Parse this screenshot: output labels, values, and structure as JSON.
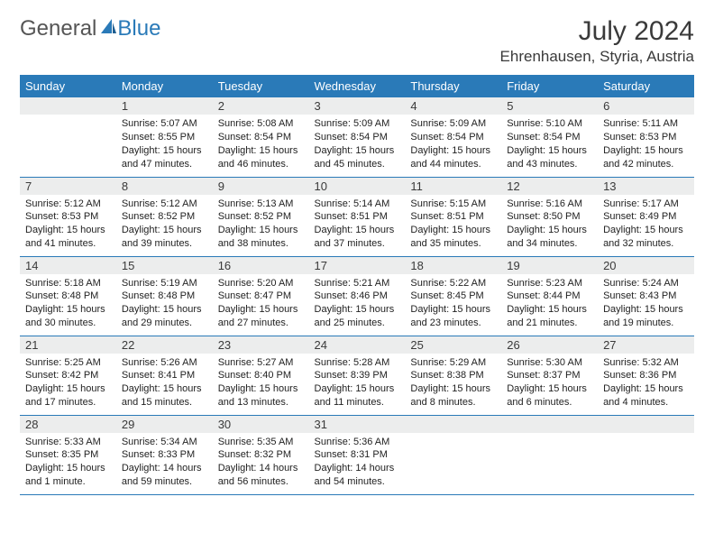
{
  "logo": {
    "text1": "General",
    "text2": "Blue"
  },
  "title": "July 2024",
  "location": "Ehrenhausen, Styria, Austria",
  "colors": {
    "header_bg": "#2a7ab8",
    "header_fg": "#ffffff",
    "daynum_bg": "#eceded"
  },
  "weekdays": [
    "Sunday",
    "Monday",
    "Tuesday",
    "Wednesday",
    "Thursday",
    "Friday",
    "Saturday"
  ],
  "weeks": [
    [
      null,
      {
        "n": "1",
        "sr": "5:07 AM",
        "ss": "8:55 PM",
        "dl": "15 hours and 47 minutes."
      },
      {
        "n": "2",
        "sr": "5:08 AM",
        "ss": "8:54 PM",
        "dl": "15 hours and 46 minutes."
      },
      {
        "n": "3",
        "sr": "5:09 AM",
        "ss": "8:54 PM",
        "dl": "15 hours and 45 minutes."
      },
      {
        "n": "4",
        "sr": "5:09 AM",
        "ss": "8:54 PM",
        "dl": "15 hours and 44 minutes."
      },
      {
        "n": "5",
        "sr": "5:10 AM",
        "ss": "8:54 PM",
        "dl": "15 hours and 43 minutes."
      },
      {
        "n": "6",
        "sr": "5:11 AM",
        "ss": "8:53 PM",
        "dl": "15 hours and 42 minutes."
      }
    ],
    [
      {
        "n": "7",
        "sr": "5:12 AM",
        "ss": "8:53 PM",
        "dl": "15 hours and 41 minutes."
      },
      {
        "n": "8",
        "sr": "5:12 AM",
        "ss": "8:52 PM",
        "dl": "15 hours and 39 minutes."
      },
      {
        "n": "9",
        "sr": "5:13 AM",
        "ss": "8:52 PM",
        "dl": "15 hours and 38 minutes."
      },
      {
        "n": "10",
        "sr": "5:14 AM",
        "ss": "8:51 PM",
        "dl": "15 hours and 37 minutes."
      },
      {
        "n": "11",
        "sr": "5:15 AM",
        "ss": "8:51 PM",
        "dl": "15 hours and 35 minutes."
      },
      {
        "n": "12",
        "sr": "5:16 AM",
        "ss": "8:50 PM",
        "dl": "15 hours and 34 minutes."
      },
      {
        "n": "13",
        "sr": "5:17 AM",
        "ss": "8:49 PM",
        "dl": "15 hours and 32 minutes."
      }
    ],
    [
      {
        "n": "14",
        "sr": "5:18 AM",
        "ss": "8:48 PM",
        "dl": "15 hours and 30 minutes."
      },
      {
        "n": "15",
        "sr": "5:19 AM",
        "ss": "8:48 PM",
        "dl": "15 hours and 29 minutes."
      },
      {
        "n": "16",
        "sr": "5:20 AM",
        "ss": "8:47 PM",
        "dl": "15 hours and 27 minutes."
      },
      {
        "n": "17",
        "sr": "5:21 AM",
        "ss": "8:46 PM",
        "dl": "15 hours and 25 minutes."
      },
      {
        "n": "18",
        "sr": "5:22 AM",
        "ss": "8:45 PM",
        "dl": "15 hours and 23 minutes."
      },
      {
        "n": "19",
        "sr": "5:23 AM",
        "ss": "8:44 PM",
        "dl": "15 hours and 21 minutes."
      },
      {
        "n": "20",
        "sr": "5:24 AM",
        "ss": "8:43 PM",
        "dl": "15 hours and 19 minutes."
      }
    ],
    [
      {
        "n": "21",
        "sr": "5:25 AM",
        "ss": "8:42 PM",
        "dl": "15 hours and 17 minutes."
      },
      {
        "n": "22",
        "sr": "5:26 AM",
        "ss": "8:41 PM",
        "dl": "15 hours and 15 minutes."
      },
      {
        "n": "23",
        "sr": "5:27 AM",
        "ss": "8:40 PM",
        "dl": "15 hours and 13 minutes."
      },
      {
        "n": "24",
        "sr": "5:28 AM",
        "ss": "8:39 PM",
        "dl": "15 hours and 11 minutes."
      },
      {
        "n": "25",
        "sr": "5:29 AM",
        "ss": "8:38 PM",
        "dl": "15 hours and 8 minutes."
      },
      {
        "n": "26",
        "sr": "5:30 AM",
        "ss": "8:37 PM",
        "dl": "15 hours and 6 minutes."
      },
      {
        "n": "27",
        "sr": "5:32 AM",
        "ss": "8:36 PM",
        "dl": "15 hours and 4 minutes."
      }
    ],
    [
      {
        "n": "28",
        "sr": "5:33 AM",
        "ss": "8:35 PM",
        "dl": "15 hours and 1 minute."
      },
      {
        "n": "29",
        "sr": "5:34 AM",
        "ss": "8:33 PM",
        "dl": "14 hours and 59 minutes."
      },
      {
        "n": "30",
        "sr": "5:35 AM",
        "ss": "8:32 PM",
        "dl": "14 hours and 56 minutes."
      },
      {
        "n": "31",
        "sr": "5:36 AM",
        "ss": "8:31 PM",
        "dl": "14 hours and 54 minutes."
      },
      null,
      null,
      null
    ]
  ],
  "labels": {
    "sunrise": "Sunrise: ",
    "sunset": "Sunset: ",
    "daylight": "Daylight: "
  }
}
